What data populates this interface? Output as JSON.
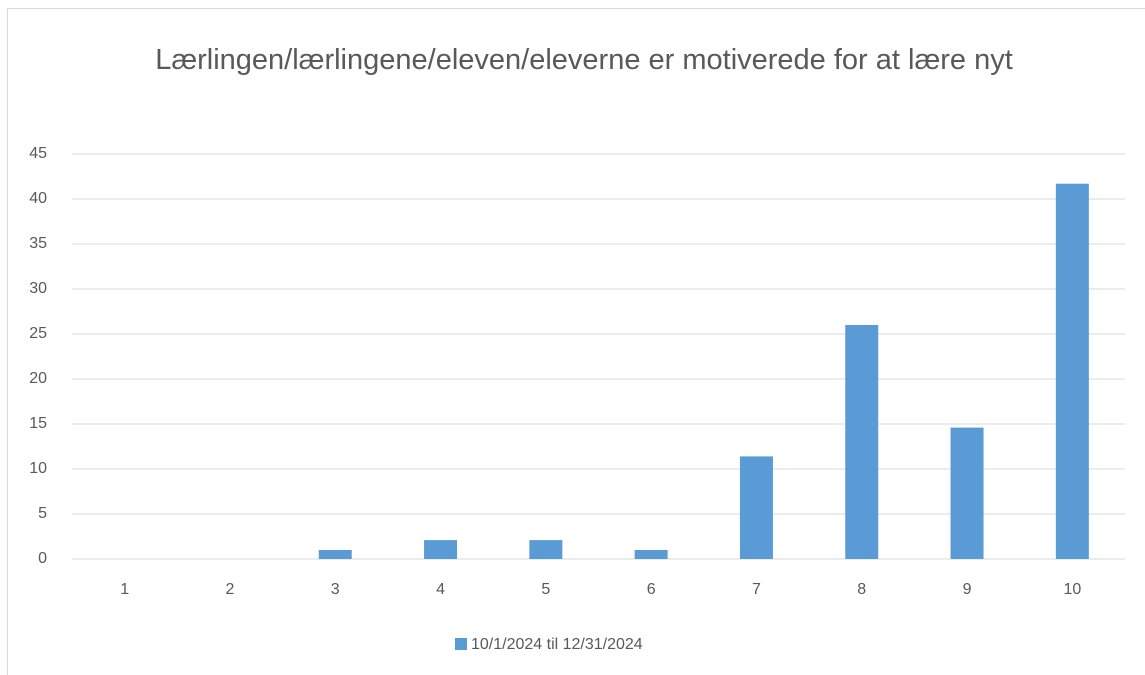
{
  "chart_data": {
    "type": "bar",
    "title": "Lærlingen/lærlingene/eleven/eleverne er motiverede for at lære nyt",
    "categories": [
      "1",
      "2",
      "3",
      "4",
      "5",
      "6",
      "7",
      "8",
      "9",
      "10"
    ],
    "series": [
      {
        "name": "10/1/2024 til 12/31/2024",
        "color": "#5b9bd5",
        "values": [
          0,
          0,
          1,
          2.1,
          2.1,
          1,
          11.4,
          26,
          14.6,
          41.7
        ]
      }
    ],
    "ylim": [
      0,
      45
    ],
    "yticks": [
      0,
      5,
      10,
      15,
      20,
      25,
      30,
      35,
      40,
      45
    ],
    "grid": true,
    "legend": "bottom"
  }
}
